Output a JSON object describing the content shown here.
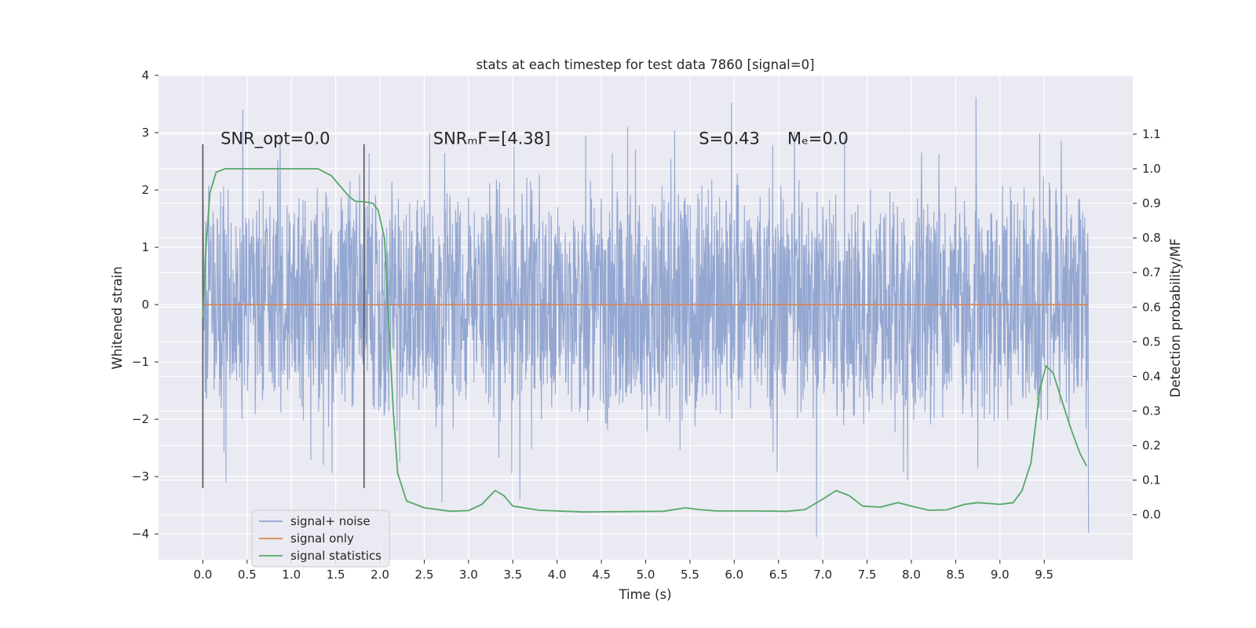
{
  "chart_data": {
    "type": "line",
    "title": "stats at each timestep for test data 7860 [signal=0]",
    "xlabel": "Time (s)",
    "ylabel": "Whitened strain",
    "y2label": "Detection probability/MF",
    "xlim": [
      -0.5,
      10.5
    ],
    "ylim": [
      -4.45,
      4.0
    ],
    "y2lim": [
      -0.13,
      1.27
    ],
    "x_ticks": [
      0.0,
      0.5,
      1.0,
      1.5,
      2.0,
      2.5,
      3.0,
      3.5,
      4.0,
      4.5,
      5.0,
      5.5,
      6.0,
      6.5,
      7.0,
      7.5,
      8.0,
      8.5,
      9.0,
      9.5
    ],
    "x_tick_labels": [
      "0.0",
      "0.5",
      "1.0",
      "1.5",
      "2.0",
      "2.5",
      "3.0",
      "3.5",
      "4.0",
      "4.5",
      "5.0",
      "5.5",
      "6.0",
      "6.5",
      "7.0",
      "7.5",
      "8.0",
      "8.5",
      "9.0",
      "9.5"
    ],
    "y_ticks": [
      4,
      3,
      2,
      1,
      0,
      -1,
      -2,
      -3,
      -4
    ],
    "y_tick_labels": [
      "4",
      "3",
      "2",
      "1",
      "0",
      "−1",
      "−2",
      "−3",
      "−4"
    ],
    "y2_ticks": [
      1.1,
      1.0,
      0.9,
      0.8,
      0.7,
      0.6,
      0.5,
      0.4,
      0.3,
      0.2,
      0.1,
      0.0
    ],
    "y2_tick_labels": [
      "1.1",
      "1.0",
      "0.9",
      "0.8",
      "0.7",
      "0.6",
      "0.5",
      "0.4",
      "0.3",
      "0.2",
      "0.1",
      "0.0"
    ],
    "grid": true,
    "legend_position": "lower-left",
    "annotations": [
      {
        "text": "SNR_opt=0.0",
        "x": 0.2,
        "y": 2.8
      },
      {
        "text": "SNRₘF=[4.38]",
        "x": 2.6,
        "y": 2.8
      },
      {
        "text": "S=0.43",
        "x": 5.6,
        "y": 2.8
      },
      {
        "text": "Mₑ=0.0",
        "x": 6.6,
        "y": 2.8
      }
    ],
    "vertical_markers": [
      {
        "x": 0.0,
        "y_from": -3.2,
        "y_to": 2.8
      },
      {
        "x": 1.82,
        "y_from": -3.2,
        "y_to": 2.8
      }
    ],
    "series": [
      {
        "name": "signal+ noise",
        "color": "#8fa3cf",
        "axis": "left",
        "style": "noise",
        "x_range": [
          0.0,
          10.0
        ],
        "typical_envelope": [
          -2.3,
          2.3
        ],
        "notable_peaks": [
          [
            0.45,
            3.4
          ],
          [
            5.97,
            3.52
          ],
          [
            8.73,
            3.62
          ],
          [
            6.93,
            -4.05
          ],
          [
            10.0,
            -3.98
          ],
          [
            2.7,
            -3.45
          ],
          [
            3.58,
            -3.4
          ]
        ]
      },
      {
        "name": "signal only",
        "color": "#dd8452",
        "axis": "left",
        "x": [
          0.0,
          10.0
        ],
        "values": [
          0.0,
          0.0
        ]
      },
      {
        "name": "signal statistics",
        "color": "#55a868",
        "axis": "right",
        "x": [
          0.0,
          0.03,
          0.08,
          0.15,
          0.25,
          0.5,
          1.0,
          1.3,
          1.45,
          1.55,
          1.65,
          1.72,
          1.82,
          1.92,
          1.98,
          2.05,
          2.1,
          2.15,
          2.2,
          2.3,
          2.5,
          2.8,
          3.0,
          3.15,
          3.3,
          3.4,
          3.5,
          3.8,
          4.3,
          4.8,
          5.2,
          5.45,
          5.6,
          5.8,
          6.2,
          6.6,
          6.8,
          7.0,
          7.15,
          7.3,
          7.45,
          7.65,
          7.85,
          8.0,
          8.2,
          8.4,
          8.6,
          8.75,
          9.0,
          9.15,
          9.25,
          9.35,
          9.45,
          9.52,
          9.6,
          9.7,
          9.8,
          9.9,
          9.98
        ],
        "values": [
          0.57,
          0.75,
          0.93,
          0.99,
          1.0,
          1.0,
          1.0,
          1.0,
          0.98,
          0.95,
          0.92,
          0.906,
          0.905,
          0.9,
          0.88,
          0.8,
          0.55,
          0.3,
          0.12,
          0.04,
          0.02,
          0.01,
          0.012,
          0.03,
          0.07,
          0.055,
          0.025,
          0.013,
          0.008,
          0.009,
          0.01,
          0.02,
          0.015,
          0.011,
          0.011,
          0.01,
          0.015,
          0.045,
          0.07,
          0.055,
          0.025,
          0.022,
          0.035,
          0.025,
          0.013,
          0.014,
          0.03,
          0.035,
          0.03,
          0.035,
          0.07,
          0.15,
          0.36,
          0.43,
          0.41,
          0.33,
          0.25,
          0.18,
          0.14
        ]
      }
    ]
  }
}
